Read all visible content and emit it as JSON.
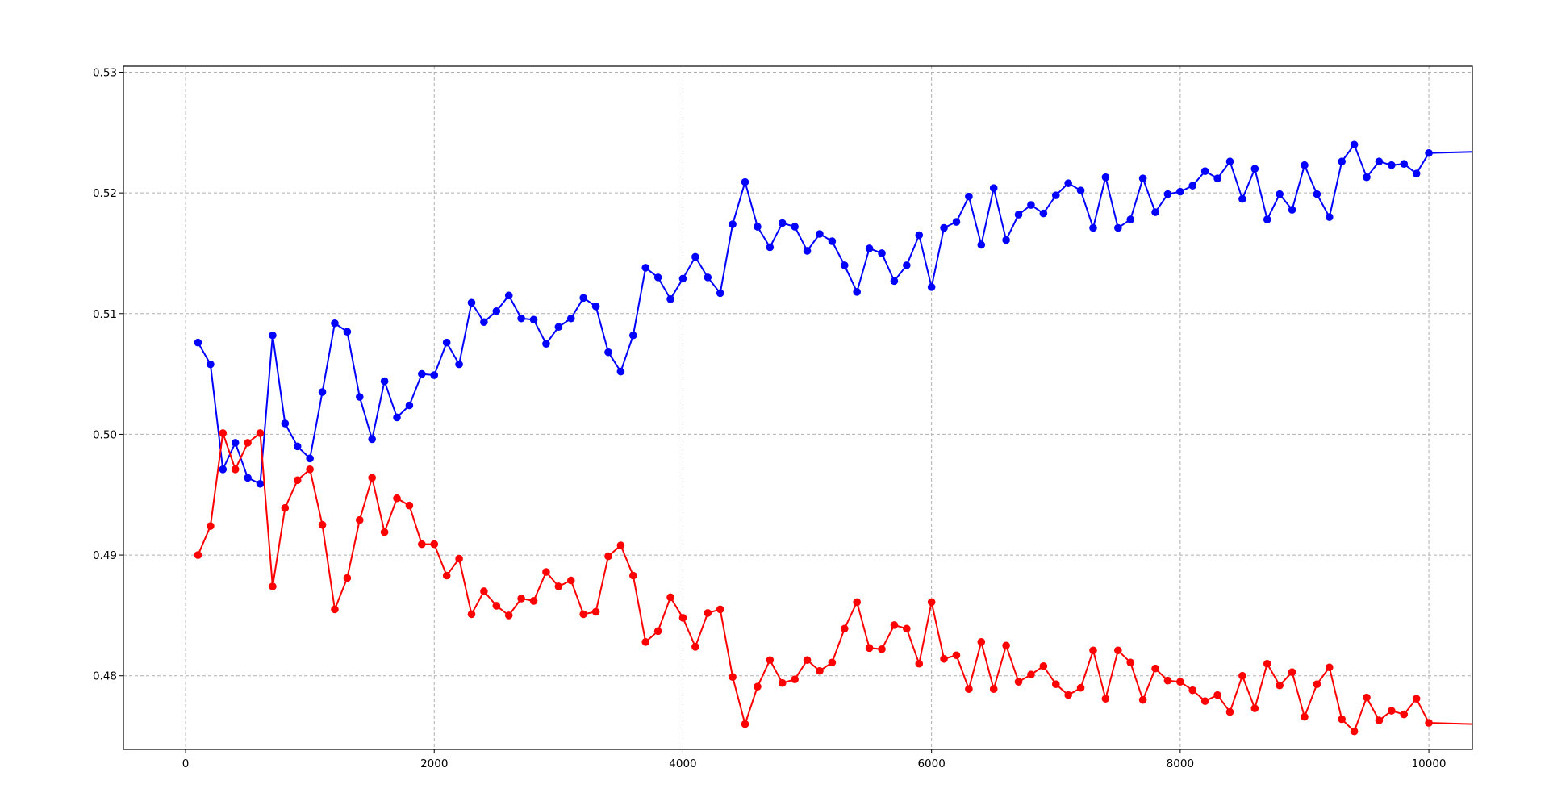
{
  "chart_data": {
    "type": "line",
    "title": "",
    "xlabel": "",
    "ylabel": "",
    "xlim": [
      -500,
      10350
    ],
    "ylim": [
      0.4739,
      0.5305
    ],
    "xticks": [
      0,
      2000,
      4000,
      6000,
      8000,
      10000
    ],
    "xtick_labels": [
      "0",
      "2000",
      "4000",
      "6000",
      "8000",
      "10000"
    ],
    "yticks": [
      0.48,
      0.49,
      0.5,
      0.51,
      0.52,
      0.53
    ],
    "ytick_labels": [
      "0.48",
      "0.49",
      "0.50",
      "0.51",
      "0.52",
      "0.53"
    ],
    "grid": true,
    "legend": "none",
    "x": [
      100,
      200,
      300,
      400,
      500,
      600,
      700,
      800,
      900,
      1000,
      1100,
      1200,
      1300,
      1400,
      1500,
      1600,
      1700,
      1800,
      1900,
      2000,
      2100,
      2200,
      2300,
      2400,
      2500,
      2600,
      2700,
      2800,
      2900,
      3000,
      3100,
      3200,
      3300,
      3400,
      3500,
      3600,
      3700,
      3800,
      3900,
      4000,
      4100,
      4200,
      4300,
      4400,
      4500,
      4600,
      4700,
      4800,
      4900,
      5000,
      5100,
      5200,
      5300,
      5400,
      5500,
      5600,
      5700,
      5800,
      5900,
      6000,
      6100,
      6200,
      6300,
      6400,
      6500,
      6600,
      6700,
      6800,
      6900,
      7000,
      7100,
      7200,
      7300,
      7400,
      7500,
      7600,
      7700,
      7800,
      7900,
      8000,
      8100,
      8200,
      8300,
      8400,
      8500,
      8600,
      8700,
      8800,
      8900,
      9000,
      9100,
      9200,
      9300,
      9400,
      9500,
      9600,
      9700,
      9800,
      9900,
      10000
    ],
    "tail_x": 10350,
    "series": [
      {
        "color": "#0000ff",
        "values": [
          0.5076,
          0.5058,
          0.4971,
          0.4993,
          0.4964,
          0.4959,
          0.5082,
          0.5009,
          0.499,
          0.498,
          0.5035,
          0.5092,
          0.5085,
          0.5031,
          0.4996,
          0.5044,
          0.5014,
          0.5024,
          0.505,
          0.5049,
          0.5076,
          0.5058,
          0.5109,
          0.5093,
          0.5102,
          0.5115,
          0.5096,
          0.5095,
          0.5075,
          0.5089,
          0.5096,
          0.5113,
          0.5106,
          0.5068,
          0.5052,
          0.5082,
          0.5138,
          0.513,
          0.5112,
          0.5129,
          0.5147,
          0.513,
          0.5117,
          0.5174,
          0.5209,
          0.5172,
          0.5155,
          0.5175,
          0.5172,
          0.5152,
          0.5166,
          0.516,
          0.514,
          0.5118,
          0.5154,
          0.515,
          0.5127,
          0.514,
          0.5165,
          0.5122,
          0.5171,
          0.5176,
          0.5197,
          0.5157,
          0.5204,
          0.5161,
          0.5182,
          0.519,
          0.5183,
          0.5198,
          0.5208,
          0.5202,
          0.5171,
          0.5213,
          0.5171,
          0.5178,
          0.5212,
          0.5184,
          0.5199,
          0.5201,
          0.5206,
          0.5218,
          0.5212,
          0.5226,
          0.5195,
          0.522,
          0.5178,
          0.5199,
          0.5186,
          0.5223,
          0.5199,
          0.518,
          0.5226,
          0.524,
          0.5213,
          0.5226,
          0.5223,
          0.5224,
          0.5216,
          0.5233
        ],
        "tail_value": 0.5234
      },
      {
        "color": "#ff0000",
        "values": [
          0.49,
          0.4924,
          0.5001,
          0.4971,
          0.4993,
          0.5001,
          0.4874,
          0.4939,
          0.4962,
          0.4971,
          0.4925,
          0.4855,
          0.4881,
          0.4929,
          0.4964,
          0.4919,
          0.4947,
          0.4941,
          0.4909,
          0.4909,
          0.4883,
          0.4897,
          0.4851,
          0.487,
          0.4858,
          0.485,
          0.4864,
          0.4862,
          0.4886,
          0.4874,
          0.4879,
          0.4851,
          0.4853,
          0.4899,
          0.4908,
          0.4883,
          0.4828,
          0.4837,
          0.4865,
          0.4848,
          0.4824,
          0.4852,
          0.4855,
          0.4799,
          0.476,
          0.4791,
          0.4813,
          0.4794,
          0.4797,
          0.4813,
          0.4804,
          0.4811,
          0.4839,
          0.4861,
          0.4823,
          0.4822,
          0.4842,
          0.4839,
          0.481,
          0.4861,
          0.4814,
          0.4817,
          0.4789,
          0.4828,
          0.4789,
          0.4825,
          0.4795,
          0.4801,
          0.4808,
          0.4793,
          0.4784,
          0.479,
          0.4821,
          0.4781,
          0.4821,
          0.4811,
          0.478,
          0.4806,
          0.4796,
          0.4795,
          0.4788,
          0.4779,
          0.4784,
          0.477,
          0.48,
          0.4773,
          0.481,
          0.4792,
          0.4803,
          0.4766,
          0.4793,
          0.4807,
          0.4764,
          0.4754,
          0.4782,
          0.4763,
          0.4771,
          0.4768,
          0.4781,
          0.4761
        ],
        "tail_value": 0.476
      }
    ]
  }
}
